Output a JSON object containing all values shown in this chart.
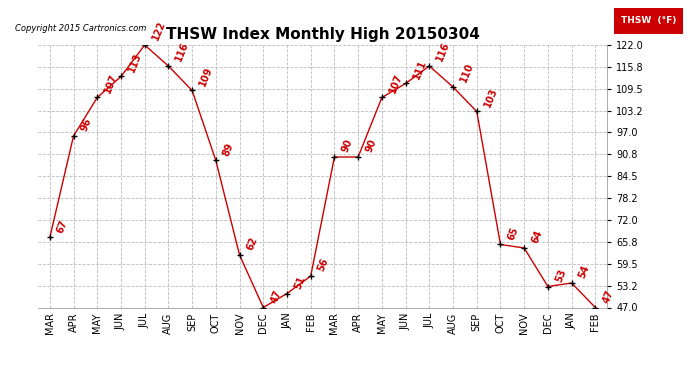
{
  "title": "THSW Index Monthly High 20150304",
  "copyright": "Copyright 2015 Cartronics.com",
  "legend_label": "THSW  (°F)",
  "months": [
    "MAR",
    "APR",
    "MAY",
    "JUN",
    "JUL",
    "AUG",
    "SEP",
    "OCT",
    "NOV",
    "DEC",
    "JAN",
    "FEB",
    "MAR",
    "APR",
    "MAY",
    "JUN",
    "JUL",
    "AUG",
    "SEP",
    "OCT",
    "NOV",
    "DEC",
    "JAN",
    "FEB"
  ],
  "values": [
    67,
    96,
    107,
    113,
    122,
    116,
    109,
    89,
    62,
    47,
    51,
    56,
    90,
    90,
    107,
    111,
    116,
    110,
    103,
    65,
    64,
    53,
    54,
    47
  ],
  "ylim": [
    47.0,
    122.0
  ],
  "yticks": [
    47.0,
    53.2,
    59.5,
    65.8,
    72.0,
    78.2,
    84.5,
    90.8,
    97.0,
    103.2,
    109.5,
    115.8,
    122.0
  ],
  "line_color": "#cc0000",
  "marker_color": "#000000",
  "label_color": "#cc0000",
  "bg_color": "#ffffff",
  "grid_color": "#bbbbbb",
  "title_fontsize": 11,
  "label_fontsize": 7,
  "tick_fontsize": 7,
  "legend_bg": "#cc0000",
  "legend_text_color": "#ffffff"
}
